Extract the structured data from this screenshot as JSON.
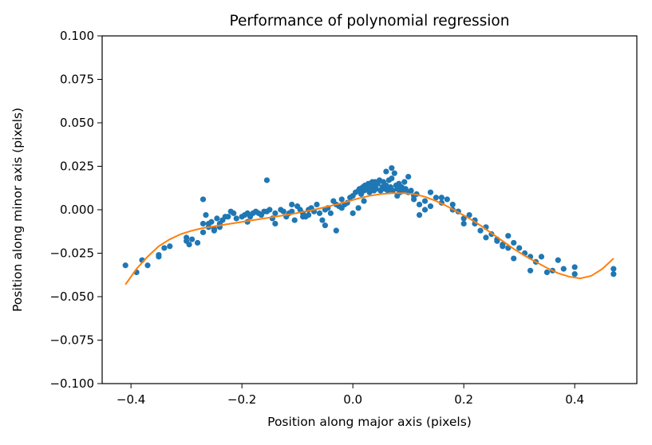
{
  "chart_data": {
    "type": "scatter",
    "title": "Performance of polynomial regression",
    "xlabel": "Position along major axis (pixels)",
    "ylabel": "Position along minor axis (pixels)",
    "xlim": [
      -0.452,
      0.512
    ],
    "ylim": [
      -0.1,
      0.1
    ],
    "xticks": [
      -0.4,
      -0.2,
      0.0,
      0.2,
      0.4
    ],
    "xtick_labels": [
      "−0.4",
      "−0.2",
      "0.0",
      "0.2",
      "0.4"
    ],
    "yticks": [
      -0.1,
      -0.075,
      -0.05,
      -0.025,
      0.0,
      0.025,
      0.05,
      0.075,
      0.1
    ],
    "ytick_labels": [
      "−0.100",
      "−0.075",
      "−0.050",
      "−0.025",
      "0.000",
      "0.025",
      "0.050",
      "0.075",
      "0.100"
    ],
    "grid": false,
    "legend": "none",
    "colors": {
      "scatter": "#1f77b4",
      "fit_line": "#ff7f0e"
    },
    "series": [
      {
        "kind": "scatter",
        "x": [
          -0.41,
          -0.39,
          -0.38,
          -0.37,
          -0.35,
          -0.35,
          -0.34,
          -0.33,
          -0.3,
          -0.3,
          -0.295,
          -0.29,
          -0.28,
          -0.27,
          -0.27,
          -0.265,
          -0.26,
          -0.26,
          -0.255,
          -0.25,
          -0.245,
          -0.24,
          -0.24,
          -0.235,
          -0.23,
          -0.225,
          -0.22,
          -0.215,
          -0.21,
          -0.2,
          -0.195,
          -0.19,
          -0.185,
          -0.18,
          -0.175,
          -0.17,
          -0.165,
          -0.16,
          -0.155,
          -0.15,
          -0.145,
          -0.14,
          -0.13,
          -0.125,
          -0.12,
          -0.115,
          -0.11,
          -0.105,
          -0.1,
          -0.095,
          -0.09,
          -0.085,
          -0.08,
          -0.075,
          -0.07,
          -0.065,
          -0.06,
          -0.055,
          -0.05,
          -0.045,
          -0.04,
          -0.035,
          -0.03,
          -0.025,
          -0.02,
          -0.015,
          -0.01,
          -0.005,
          0.0,
          0.005,
          0.01,
          0.012,
          0.015,
          0.018,
          0.02,
          0.022,
          0.025,
          0.028,
          0.03,
          0.033,
          0.035,
          0.038,
          0.04,
          0.042,
          0.045,
          0.048,
          0.05,
          0.053,
          0.055,
          0.058,
          0.06,
          0.063,
          0.065,
          0.068,
          0.07,
          0.072,
          0.075,
          0.078,
          0.08,
          0.083,
          0.085,
          0.088,
          0.09,
          0.093,
          0.095,
          0.1,
          0.105,
          0.11,
          0.115,
          0.12,
          0.13,
          0.14,
          0.15,
          0.16,
          0.17,
          0.18,
          0.19,
          0.2,
          0.21,
          0.22,
          0.23,
          0.24,
          0.25,
          0.26,
          0.27,
          0.28,
          0.29,
          0.3,
          0.31,
          0.32,
          0.33,
          0.34,
          0.35,
          0.37,
          0.38,
          0.4,
          0.4,
          0.47,
          0.47,
          -0.155,
          -0.27,
          -0.19,
          -0.14,
          -0.09,
          -0.05,
          -0.03,
          0.0,
          0.02,
          0.07,
          0.1,
          0.13,
          0.16,
          0.19,
          0.22,
          0.26,
          0.29,
          0.32,
          0.36,
          0.06,
          0.08,
          -0.25,
          -0.11,
          0.01,
          0.04,
          0.11,
          0.14,
          0.18,
          0.24,
          0.27,
          -0.08,
          -0.02,
          0.12,
          0.2,
          0.28
        ],
        "y": [
          -0.032,
          -0.036,
          -0.029,
          -0.032,
          -0.026,
          -0.027,
          -0.022,
          -0.021,
          -0.016,
          -0.018,
          -0.02,
          -0.017,
          -0.019,
          -0.013,
          -0.008,
          -0.003,
          -0.01,
          -0.008,
          -0.007,
          -0.011,
          -0.005,
          -0.008,
          -0.01,
          -0.006,
          -0.004,
          -0.004,
          -0.001,
          -0.002,
          -0.005,
          -0.004,
          -0.003,
          -0.002,
          -0.004,
          -0.002,
          -0.001,
          -0.002,
          -0.003,
          -0.001,
          -0.001,
          0.0,
          -0.005,
          -0.002,
          0.0,
          -0.001,
          -0.004,
          -0.002,
          -0.001,
          -0.006,
          0.002,
          0.0,
          -0.002,
          -0.004,
          -0.003,
          0.001,
          -0.001,
          0.003,
          -0.002,
          -0.006,
          0.0,
          0.001,
          -0.002,
          0.005,
          0.003,
          0.002,
          0.006,
          0.003,
          0.004,
          0.007,
          0.008,
          0.01,
          0.011,
          0.012,
          0.009,
          0.013,
          0.011,
          0.014,
          0.012,
          0.015,
          0.01,
          0.013,
          0.016,
          0.011,
          0.014,
          0.012,
          0.015,
          0.017,
          0.011,
          0.013,
          0.016,
          0.012,
          0.014,
          0.011,
          0.017,
          0.013,
          0.024,
          0.011,
          0.021,
          0.014,
          0.012,
          0.015,
          0.01,
          0.013,
          0.011,
          0.016,
          0.012,
          0.01,
          0.011,
          0.006,
          0.009,
          0.003,
          0.005,
          0.002,
          0.007,
          0.004,
          0.006,
          0.003,
          -0.001,
          -0.005,
          -0.003,
          -0.008,
          -0.012,
          -0.01,
          -0.014,
          -0.017,
          -0.021,
          -0.015,
          -0.019,
          -0.022,
          -0.025,
          -0.027,
          -0.03,
          -0.027,
          -0.036,
          -0.029,
          -0.034,
          -0.037,
          -0.033,
          -0.037,
          -0.034,
          0.017,
          0.006,
          -0.007,
          -0.008,
          -0.004,
          -0.009,
          -0.012,
          -0.002,
          0.005,
          0.018,
          0.019,
          0.0,
          0.007,
          -0.001,
          -0.006,
          -0.018,
          -0.028,
          -0.035,
          -0.035,
          0.022,
          0.008,
          -0.012,
          0.003,
          0.001,
          0.016,
          0.008,
          0.01,
          0.0,
          -0.016,
          -0.02,
          0.0,
          0.001,
          -0.003,
          -0.008,
          -0.022
        ]
      },
      {
        "kind": "line",
        "x": [
          -0.41,
          -0.39,
          -0.37,
          -0.35,
          -0.33,
          -0.31,
          -0.29,
          -0.27,
          -0.25,
          -0.23,
          -0.21,
          -0.19,
          -0.17,
          -0.15,
          -0.13,
          -0.11,
          -0.09,
          -0.07,
          -0.05,
          -0.03,
          -0.01,
          0.01,
          0.03,
          0.05,
          0.07,
          0.09,
          0.11,
          0.13,
          0.15,
          0.17,
          0.19,
          0.21,
          0.23,
          0.25,
          0.27,
          0.29,
          0.31,
          0.33,
          0.35,
          0.37,
          0.39,
          0.41,
          0.43,
          0.45,
          0.47
        ],
        "y": [
          -0.043,
          -0.034,
          -0.027,
          -0.021,
          -0.017,
          -0.014,
          -0.012,
          -0.0105,
          -0.0095,
          -0.0085,
          -0.0075,
          -0.0065,
          -0.0055,
          -0.0045,
          -0.0035,
          -0.0025,
          -0.0012,
          0.0,
          0.0015,
          0.003,
          0.0047,
          0.0065,
          0.008,
          0.009,
          0.0095,
          0.0095,
          0.009,
          0.0075,
          0.005,
          0.002,
          -0.0015,
          -0.005,
          -0.009,
          -0.0135,
          -0.018,
          -0.0225,
          -0.0265,
          -0.03,
          -0.0335,
          -0.0365,
          -0.0385,
          -0.0395,
          -0.038,
          -0.034,
          -0.028
        ]
      }
    ]
  }
}
